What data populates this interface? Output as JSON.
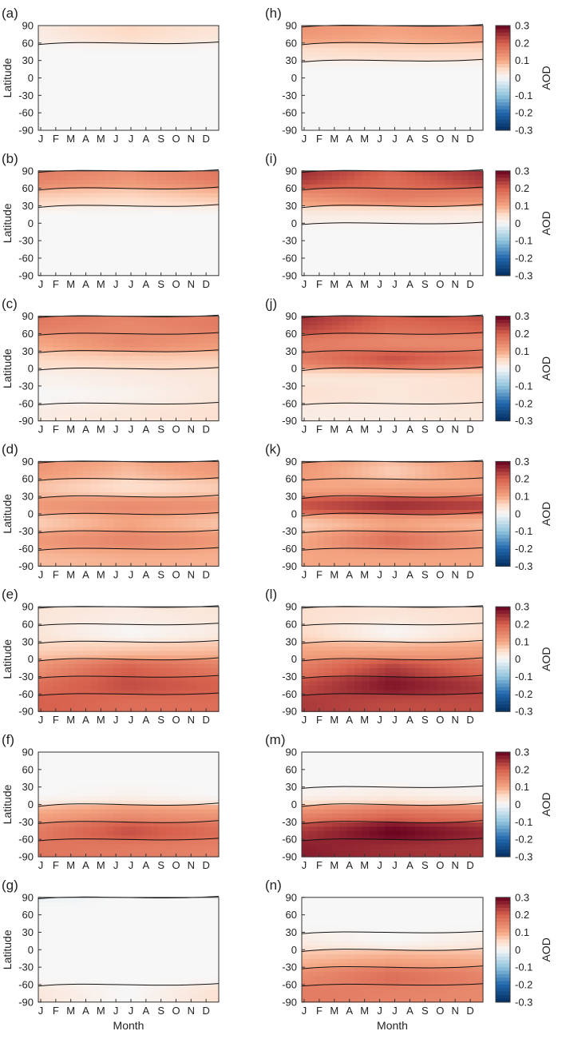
{
  "chart_data": {
    "type": "heatmap",
    "description_axes": {
      "xlabel": "Month",
      "ylabel": "Latitude",
      "x_ticks": [
        "J",
        "F",
        "M",
        "A",
        "M",
        "J",
        "J",
        "A",
        "S",
        "O",
        "N",
        "D"
      ],
      "y_ticks": [
        "90",
        "60",
        "30",
        "0",
        "-30",
        "-60",
        "-90"
      ],
      "ylim": [
        -90,
        90
      ]
    },
    "colorbar": {
      "label": "AOD",
      "ticks": [
        "0.3",
        "0.2",
        "0.1",
        "0",
        "-0.1",
        "-0.2",
        "-0.3"
      ],
      "range": [
        -0.3,
        0.3
      ]
    },
    "panels": [
      {
        "id": "a",
        "label": "(a)",
        "bands": [
          [
            0.0,
            0.0,
            0.0
          ],
          [
            0.0,
            0.0,
            0.0
          ],
          [
            0.0,
            0.0,
            0.0
          ],
          [
            0.0,
            0.0,
            0.0
          ],
          [
            0.0,
            0.0,
            0.0
          ],
          [
            0.02,
            0.05,
            0.03
          ],
          [
            0.03,
            0.06,
            0.04
          ]
        ]
      },
      {
        "id": "b",
        "label": "(b)",
        "bands": [
          [
            0.0,
            0.0,
            0.0
          ],
          [
            0.0,
            0.0,
            0.0
          ],
          [
            0.0,
            0.0,
            0.0
          ],
          [
            0.0,
            0.0,
            0.0
          ],
          [
            0.06,
            0.05,
            0.07
          ],
          [
            0.15,
            0.12,
            0.16
          ],
          [
            0.18,
            0.16,
            0.18
          ]
        ]
      },
      {
        "id": "c",
        "label": "(c)",
        "bands": [
          [
            0.02,
            0.03,
            0.04
          ],
          [
            0.0,
            0.01,
            0.03
          ],
          [
            0.01,
            0.02,
            0.03
          ],
          [
            0.05,
            0.06,
            0.06
          ],
          [
            0.1,
            0.14,
            0.12
          ],
          [
            0.16,
            0.14,
            0.16
          ],
          [
            0.18,
            0.17,
            0.15
          ]
        ]
      },
      {
        "id": "d",
        "label": "(d)",
        "bands": [
          [
            0.08,
            0.09,
            0.09
          ],
          [
            0.12,
            0.15,
            0.12
          ],
          [
            0.06,
            0.1,
            0.07
          ],
          [
            0.12,
            0.14,
            0.13
          ],
          [
            0.07,
            0.04,
            0.06
          ],
          [
            0.12,
            0.08,
            0.12
          ],
          [
            0.14,
            0.12,
            0.13
          ]
        ]
      },
      {
        "id": "e",
        "label": "(e)",
        "bands": [
          [
            0.2,
            0.18,
            0.18
          ],
          [
            0.18,
            0.22,
            0.2
          ],
          [
            0.13,
            0.2,
            0.16
          ],
          [
            0.06,
            0.07,
            0.08
          ],
          [
            0.03,
            0.0,
            0.02
          ],
          [
            0.03,
            0.02,
            0.03
          ],
          [
            0.04,
            0.04,
            0.04
          ]
        ]
      },
      {
        "id": "f",
        "label": "(f)",
        "bands": [
          [
            0.17,
            0.16,
            0.15
          ],
          [
            0.16,
            0.22,
            0.18
          ],
          [
            0.1,
            0.13,
            0.12
          ],
          [
            0.0,
            0.01,
            0.0
          ],
          [
            0.0,
            0.0,
            0.0
          ],
          [
            0.0,
            0.0,
            0.0
          ],
          [
            0.0,
            0.0,
            0.0
          ]
        ]
      },
      {
        "id": "g",
        "label": "(g)",
        "bands": [
          [
            0.03,
            0.0,
            0.04
          ],
          [
            0.0,
            0.0,
            0.0
          ],
          [
            0.0,
            0.0,
            0.0
          ],
          [
            0.0,
            0.0,
            0.0
          ],
          [
            0.0,
            0.0,
            0.0
          ],
          [
            0.0,
            0.0,
            0.0
          ],
          [
            -0.04,
            0.0,
            0.0
          ]
        ]
      },
      {
        "id": "h",
        "label": "(h)",
        "bands": [
          [
            0.0,
            0.0,
            0.0
          ],
          [
            0.0,
            0.0,
            0.0
          ],
          [
            0.0,
            0.0,
            0.0
          ],
          [
            0.0,
            0.0,
            0.0
          ],
          [
            0.04,
            0.05,
            0.05
          ],
          [
            0.12,
            0.1,
            0.12
          ],
          [
            0.14,
            0.13,
            0.14
          ]
        ]
      },
      {
        "id": "i",
        "label": "(i)",
        "bands": [
          [
            0.0,
            0.0,
            0.0
          ],
          [
            0.0,
            0.0,
            0.0
          ],
          [
            0.0,
            0.0,
            0.0
          ],
          [
            0.02,
            0.02,
            0.02
          ],
          [
            0.12,
            0.16,
            0.14
          ],
          [
            0.24,
            0.18,
            0.24
          ],
          [
            0.28,
            0.22,
            0.28
          ]
        ]
      },
      {
        "id": "j",
        "label": "(j)",
        "bands": [
          [
            0.02,
            0.02,
            0.03
          ],
          [
            0.04,
            0.03,
            0.04
          ],
          [
            0.03,
            0.03,
            0.04
          ],
          [
            0.16,
            0.22,
            0.18
          ],
          [
            0.16,
            0.14,
            0.14
          ],
          [
            0.24,
            0.18,
            0.2
          ],
          [
            0.28,
            0.24,
            0.26
          ]
        ]
      },
      {
        "id": "k",
        "label": "(k)",
        "bands": [
          [
            0.1,
            0.1,
            0.1
          ],
          [
            0.1,
            0.18,
            0.12
          ],
          [
            0.06,
            0.1,
            0.08
          ],
          [
            0.22,
            0.26,
            0.24
          ],
          [
            0.1,
            0.1,
            0.1
          ],
          [
            0.12,
            0.06,
            0.12
          ],
          [
            0.14,
            0.12,
            0.13
          ]
        ]
      },
      {
        "id": "l",
        "label": "(l)",
        "bands": [
          [
            0.24,
            0.22,
            0.22
          ],
          [
            0.22,
            0.28,
            0.24
          ],
          [
            0.16,
            0.24,
            0.18
          ],
          [
            0.1,
            0.1,
            0.11
          ],
          [
            0.05,
            0.0,
            0.04
          ],
          [
            0.04,
            0.03,
            0.04
          ],
          [
            0.05,
            0.05,
            0.05
          ]
        ]
      },
      {
        "id": "m",
        "label": "(m)",
        "bands": [
          [
            0.27,
            0.25,
            0.24
          ],
          [
            0.24,
            0.3,
            0.26
          ],
          [
            0.14,
            0.18,
            0.16
          ],
          [
            0.01,
            0.02,
            0.01
          ],
          [
            0.0,
            0.0,
            0.0
          ],
          [
            0.0,
            0.0,
            0.0
          ],
          [
            0.0,
            0.0,
            0.0
          ]
        ]
      },
      {
        "id": "n",
        "label": "(n)",
        "bands": [
          [
            0.16,
            0.15,
            0.14
          ],
          [
            0.14,
            0.18,
            0.15
          ],
          [
            0.08,
            0.1,
            0.09
          ],
          [
            0.02,
            0.0,
            0.02
          ],
          [
            0.0,
            0.0,
            0.0
          ],
          [
            0.0,
            0.0,
            0.0
          ],
          [
            0.0,
            0.0,
            0.0
          ]
        ]
      }
    ]
  }
}
